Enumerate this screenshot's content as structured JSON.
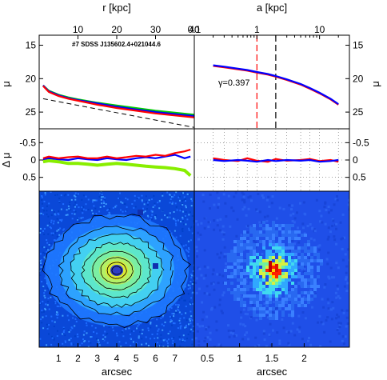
{
  "chart_data": [
    {
      "type": "line",
      "panel": "top-left surface brightness profile",
      "title": "",
      "annotation": "#7 SDSS J135602.4+021044.6",
      "xlabel": "",
      "ylabel": "μ",
      "top_xlabel": "r [kpc]",
      "xlim": [
        0.0,
        8.0
      ],
      "ylim": [
        27.5,
        13.5
      ],
      "y_inverted": true,
      "xticks_bottom": [
        1,
        2,
        3,
        4,
        5,
        6,
        7
      ],
      "xticks_top_kpc": [
        10,
        20,
        30,
        40
      ],
      "kpc_per_arcsec": 5.0,
      "yticks": [
        15,
        20,
        25
      ],
      "grid": false,
      "series": [
        {
          "color": "#00cc00",
          "x": [
            0.2,
            0.5,
            1,
            1.5,
            2,
            3,
            4,
            5,
            6,
            7,
            8
          ],
          "y": [
            21.0,
            21.8,
            22.4,
            22.8,
            23.1,
            23.6,
            24.0,
            24.4,
            24.8,
            25.1,
            25.4
          ]
        },
        {
          "color": "#0000ff",
          "x": [
            0.2,
            0.5,
            1,
            1.5,
            2,
            3,
            4,
            5,
            6,
            7,
            8
          ],
          "y": [
            21.0,
            21.9,
            22.5,
            22.9,
            23.2,
            23.7,
            24.2,
            24.6,
            25.0,
            25.3,
            25.6
          ]
        },
        {
          "color": "#ff0000",
          "x": [
            0.2,
            0.5,
            1,
            1.5,
            2,
            3,
            4,
            5,
            6,
            7,
            8
          ],
          "y": [
            21.1,
            22.0,
            22.6,
            23.0,
            23.3,
            23.9,
            24.4,
            24.8,
            25.2,
            25.5,
            25.8
          ]
        },
        {
          "color": "#000000",
          "dash": true,
          "x": [
            0.2,
            8
          ],
          "y": [
            23.0,
            27.3
          ]
        }
      ]
    },
    {
      "type": "line",
      "panel": "top-right surface brightness vs semi-major axis",
      "title": "",
      "xlabel": "",
      "ylabel": "μ",
      "top_xlabel": "a [kpc]",
      "xscale": "log",
      "xlim": [
        0.1,
        30
      ],
      "ylim": [
        27.5,
        13.5
      ],
      "y_inverted": true,
      "xticks": [
        0.1,
        1,
        10
      ],
      "yticks": [
        15,
        20,
        25
      ],
      "annotation": "γ=0.397",
      "vlines": [
        {
          "x": 1.0,
          "color": "#ff0000"
        },
        {
          "x": 2.0,
          "color": "#000000"
        }
      ],
      "series": [
        {
          "color": "#ff0000",
          "x": [
            0.2,
            0.3,
            0.5,
            0.7,
            1,
            1.5,
            2,
            3,
            5,
            7,
            10,
            15,
            20
          ],
          "y": [
            18.1,
            18.3,
            18.6,
            18.8,
            19.1,
            19.4,
            19.7,
            20.2,
            20.9,
            21.5,
            22.2,
            23.1,
            23.9
          ]
        },
        {
          "color": "#0000ff",
          "x": [
            0.2,
            0.3,
            0.5,
            0.7,
            1,
            1.5,
            2,
            3,
            5,
            7,
            10,
            15,
            20
          ],
          "y": [
            18.0,
            18.2,
            18.5,
            18.7,
            19.0,
            19.3,
            19.6,
            20.1,
            20.8,
            21.4,
            22.1,
            23.0,
            23.8
          ]
        }
      ]
    },
    {
      "type": "line",
      "panel": "middle-left residuals",
      "title": "",
      "xlabel": "",
      "ylabel": "Δ μ",
      "xlim": [
        0.0,
        8.0
      ],
      "ylim": [
        0.9,
        -0.9
      ],
      "y_inverted": true,
      "yticks": [
        -0.5,
        0,
        0.5
      ],
      "series": [
        {
          "color": "#88ee00",
          "x": [
            0.2,
            0.5,
            1,
            1.5,
            2,
            2.5,
            3,
            3.5,
            4,
            4.5,
            5,
            5.5,
            6,
            6.5,
            7,
            7.5,
            7.8
          ],
          "y": [
            0.05,
            0.02,
            0.05,
            0.1,
            0.1,
            0.12,
            0.15,
            0.12,
            0.1,
            0.12,
            0.15,
            0.18,
            0.2,
            0.22,
            0.25,
            0.3,
            0.45
          ]
        },
        {
          "color": "#0000ff",
          "x": [
            0.2,
            0.5,
            1,
            1.5,
            2,
            2.5,
            3,
            3.5,
            4,
            4.5,
            5,
            5.5,
            6,
            6.5,
            7,
            7.5,
            7.8
          ],
          "y": [
            -0.02,
            -0.05,
            -0.02,
            0.0,
            -0.05,
            -0.02,
            0.0,
            -0.05,
            -0.02,
            0.0,
            -0.05,
            -0.08,
            -0.05,
            -0.1,
            -0.15,
            -0.05,
            -0.1
          ]
        },
        {
          "color": "#ff0000",
          "x": [
            0.2,
            0.5,
            1,
            1.5,
            2,
            2.5,
            3,
            3.5,
            4,
            4.5,
            5,
            5.5,
            6,
            6.5,
            7,
            7.5,
            7.8
          ],
          "y": [
            -0.05,
            -0.1,
            -0.05,
            -0.08,
            -0.1,
            -0.05,
            -0.05,
            -0.1,
            -0.05,
            -0.08,
            -0.12,
            -0.1,
            -0.15,
            -0.12,
            -0.2,
            -0.25,
            -0.3
          ]
        }
      ]
    },
    {
      "type": "line",
      "panel": "middle-right residuals",
      "title": "",
      "xlabel": "",
      "ylabel": "",
      "xscale": "log",
      "xlim": [
        0.1,
        30
      ],
      "ylim": [
        0.9,
        -0.9
      ],
      "y_inverted": true,
      "yticks": [
        -0.5,
        0,
        0.5
      ],
      "series": [
        {
          "color": "#ff0000",
          "x": [
            0.2,
            0.3,
            0.5,
            0.7,
            1,
            1.5,
            2,
            3,
            5,
            7,
            10,
            15,
            20
          ],
          "y": [
            -0.05,
            0.0,
            0.03,
            -0.05,
            0.02,
            0.05,
            -0.03,
            0.02,
            0.0,
            -0.03,
            0.03,
            0.0,
            0.05
          ]
        },
        {
          "color": "#0000ff",
          "x": [
            0.2,
            0.3,
            0.5,
            0.7,
            1,
            1.5,
            2,
            3,
            5,
            7,
            10,
            15,
            20
          ],
          "y": [
            0.0,
            0.03,
            0.0,
            0.02,
            0.05,
            0.0,
            0.03,
            0.0,
            0.02,
            0.0,
            0.05,
            0.03,
            0.0
          ]
        }
      ]
    },
    {
      "type": "heatmap",
      "panel": "bottom-left galaxy image with isophote contours",
      "title": "",
      "xlabel": "arcsec",
      "xlim": [
        0.0,
        8.0
      ],
      "xticks": [
        1,
        2,
        3,
        4,
        5,
        6,
        7
      ],
      "colormap": "jet"
    },
    {
      "type": "heatmap",
      "panel": "bottom-right residual image",
      "title": "",
      "xlabel": "arcsec",
      "xlim": [
        0.3,
        2.7
      ],
      "xticks": [
        0.5,
        1,
        1.5,
        2
      ],
      "colormap": "jet"
    }
  ],
  "labels": {
    "top_left_xlabel": "r [kpc]",
    "top_right_xlabel": "a [kpc]",
    "y_mu_left": "μ",
    "y_mu_right": "μ",
    "y_dmu": "Δ μ",
    "bottom_left_xlabel": "arcsec",
    "bottom_right_xlabel": "arcsec",
    "galaxy_id": "#7 SDSS J135602.4+021044.6",
    "gamma": "γ=0.397"
  },
  "tick_labels": {
    "top_kpc": [
      "10",
      "20",
      "30",
      "40"
    ],
    "top_a": [
      "0.1",
      "1",
      "10"
    ],
    "mu": [
      "15",
      "20",
      "25"
    ],
    "dmu": [
      "-0.5",
      "0",
      "0.5"
    ],
    "arcsec_left": [
      "1",
      "2",
      "3",
      "4",
      "5",
      "6",
      "7"
    ],
    "arcsec_right": [
      "0.5",
      "1",
      "1.5",
      "2"
    ]
  }
}
